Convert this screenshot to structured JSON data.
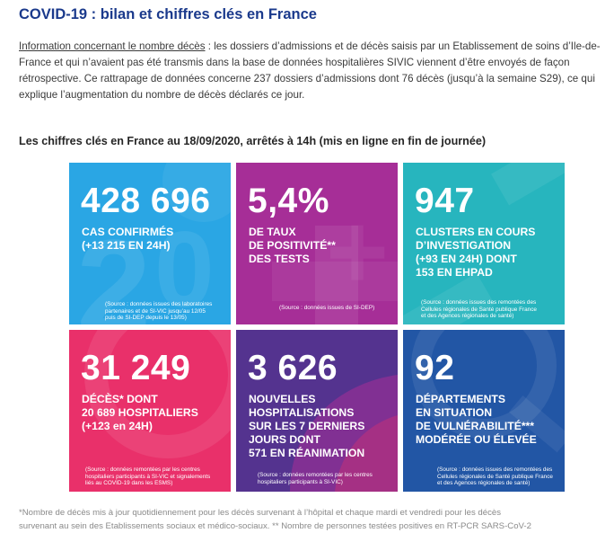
{
  "page": {
    "title": "COVID-19 : bilan et chiffres clés en France",
    "info_label": "Information concernant le nombre décès",
    "info_text": " : les dossiers d’admissions et de décès saisis par un Etablissement de soins d’Ile-de-France et qui n’avaient pas été transmis dans la base de données hospitalières SIVIC viennent d’être envoyés de façon rétrospective. Ce rattrapage de données concerne 237 dossiers d’admissions dont 76 décès (jusqu’à la semaine S29), ce qui explique l’augmentation du nombre de décès déclarés ce jour.",
    "subtitle": "Les chiffres clés en France au 18/09/2020, arrêtés à 14h (mis en ligne en fin de journée)"
  },
  "tiles": [
    {
      "color": "#2aa6e4",
      "value": "428 696",
      "lines": [
        "CAS CONFIRMÉS",
        "(+13 215 EN 24H)"
      ],
      "source": [
        "(Source : données issues des laboratoires",
        "partenaires et de SI-VIC jusqu’au 12/05",
        "puis de SI-DEP depuis le 13/05)"
      ]
    },
    {
      "color": "#a62e97",
      "value": "5,4%",
      "lines": [
        "DE TAUX",
        "DE POSITIVITÉ**",
        "DES TESTS"
      ],
      "source": [
        "(Source : données issues de SI-DEP)"
      ]
    },
    {
      "color": "#27b5be",
      "value": "947",
      "lines": [
        "CLUSTERS EN COURS",
        "D’INVESTIGATION",
        "(+93 EN 24H) DONT",
        "153 EN EHPAD"
      ],
      "source": [
        "(Source : données issues des remontées des",
        "Cellules régionales de Santé publique France",
        "et des Agences régionales de santé)"
      ]
    },
    {
      "color": "#e9306a",
      "value": "31 249",
      "lines": [
        "DÉCÈS* DONT",
        "20 689 HOSPITALIERS",
        "(+123 en 24H)"
      ],
      "source": [
        "(Source : données remontées par les centres",
        "hospitaliers participants à SI-VIC et signalements",
        "liés au COVID-19 dans les ESMS)"
      ]
    },
    {
      "color": "#54338f",
      "value": "3 626",
      "lines": [
        "NOUVELLES",
        "HOSPITALISATIONS",
        "SUR LES 7 DERNIERS",
        "JOURS DONT",
        "571 EN RÉANIMATION"
      ],
      "source": [
        "(Source : données remontées par les centres",
        "hospitaliers participants à SI-VIC)"
      ]
    },
    {
      "color": "#2256a5",
      "value": "92",
      "lines": [
        "DÉPARTEMENTS",
        "EN SITUATION",
        "DE VULNÉRABILITÉ***",
        "MODÉRÉE OU ÉLEVÉE"
      ],
      "source": [
        "(Source : données issues des remontées des",
        "Cellules régionales de Santé publique France",
        "et des Agences régionales de santé)"
      ]
    }
  ],
  "footnote": [
    "*Nombre de décès mis à jour quotidiennement pour les décès survenant à l’hôpital et chaque mardi et vendredi pour les décès",
    "survenant au sein des Etablissements sociaux et médico-sociaux. ** Nombre de personnes testées positives en RT-PCR SARS-CoV-2"
  ]
}
